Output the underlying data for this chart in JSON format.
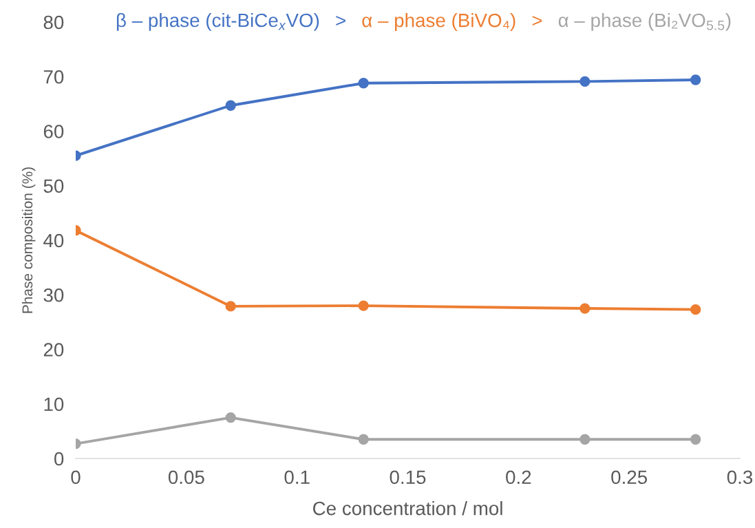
{
  "chart_data": {
    "type": "line",
    "xlabel": "Ce concentration / mol",
    "ylabel": "Phase composition (%)",
    "x": [
      0,
      0.07,
      0.13,
      0.23,
      0.28
    ],
    "series": [
      {
        "name": "β – phase (cit-BiCe$_{x}$VO)",
        "color": "#4472c4",
        "values": [
          55.5,
          64.7,
          68.8,
          69.1,
          69.4
        ]
      },
      {
        "name": "α – phase (BiVO₄)",
        "color": "#ed7d31",
        "values": [
          41.8,
          27.9,
          28.0,
          27.5,
          27.3
        ]
      },
      {
        "name": "α – phase (Bi₂VO$_{5.5}$)",
        "color": "#a5a5a5",
        "values": [
          2.7,
          7.5,
          3.5,
          3.5,
          3.5
        ]
      }
    ],
    "annotations": [
      ">",
      ">"
    ],
    "xlim": [
      0,
      0.3
    ],
    "xticks": [
      {
        "value": 0,
        "label": "0"
      },
      0.05,
      0.1,
      0.15,
      0.2,
      0.25,
      0.3
    ],
    "ylim": [
      0,
      80
    ],
    "yticks": [
      0,
      10,
      20,
      30,
      40,
      50,
      60,
      70,
      80
    ],
    "grid": false,
    "legend": "top",
    "marker": "circle",
    "line_style": "solid"
  }
}
